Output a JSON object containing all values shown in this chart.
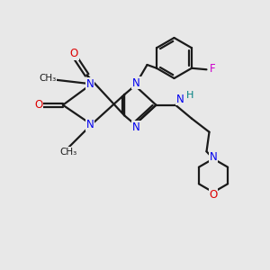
{
  "bg_color": "#e8e8e8",
  "bond_color": "#1a1a1a",
  "n_color": "#0000ee",
  "o_color": "#dd0000",
  "f_color": "#cc00cc",
  "h_color": "#008080",
  "line_width": 1.6,
  "figsize": [
    3.0,
    3.0
  ],
  "dpi": 100,
  "xlim": [
    0,
    10
  ],
  "ylim": [
    0,
    10
  ]
}
